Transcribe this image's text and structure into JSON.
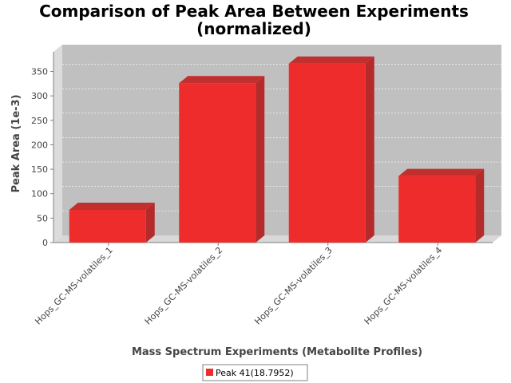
{
  "chart_data": {
    "type": "bar",
    "title": "Comparison of Peak Area Between Experiments",
    "subtitle": "(normalized)",
    "xlabel": "Mass Spectrum Experiments (Metabolite Profiles)",
    "ylabel": "Peak Area (1e-3)",
    "categories": [
      "Hops_GC-MS-volatiles_1",
      "Hops_GC-MS-volatiles_2",
      "Hops_GC-MS-volatiles_3",
      "Hops_GC-MS-volatiles_4"
    ],
    "series": [
      {
        "name": "Peak 41(18.7952)",
        "values": [
          67,
          326,
          366,
          136
        ],
        "color": "#ee2c2c"
      }
    ],
    "ylim": [
      0,
      390
    ],
    "yticks": [
      0,
      50,
      100,
      150,
      200,
      250,
      300,
      350
    ],
    "grid": true,
    "legend": "bottom-center",
    "plot_background": "#c0c0c0",
    "three_d": true
  }
}
